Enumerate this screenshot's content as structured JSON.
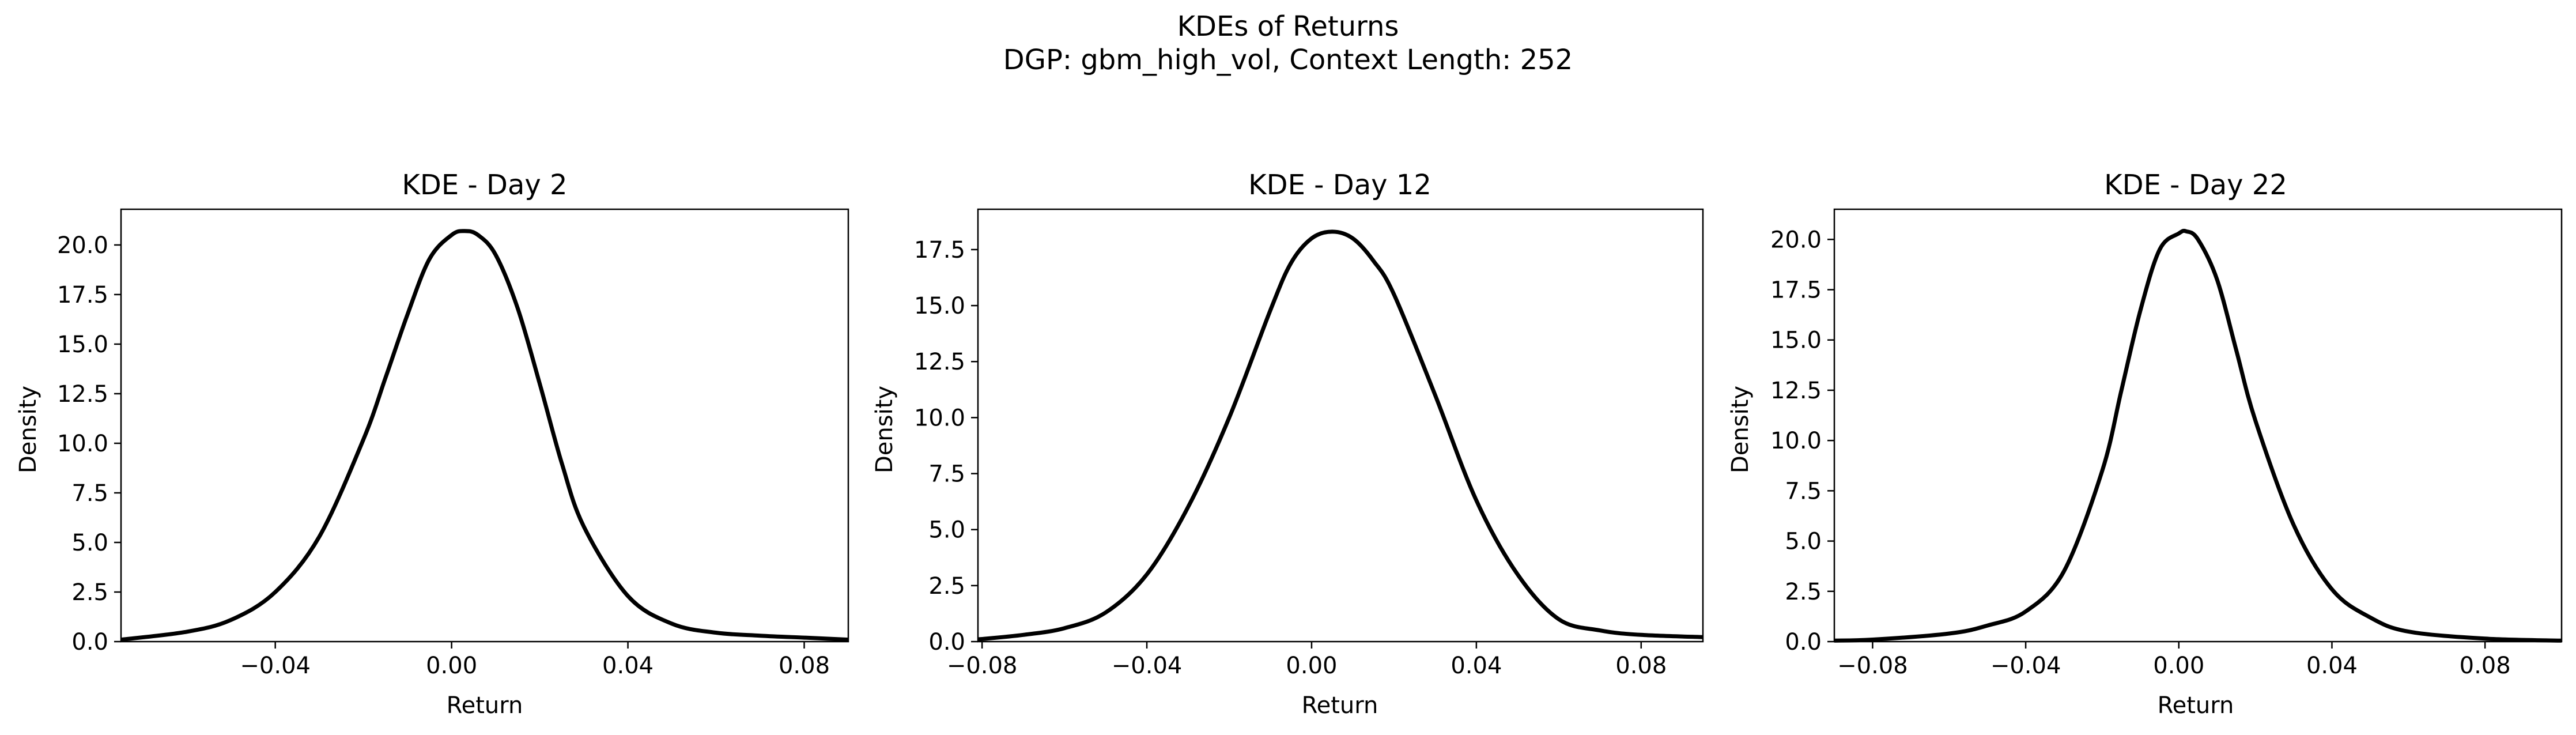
{
  "suptitle": {
    "line1": "KDEs of Returns",
    "line2": "DGP: gbm_high_vol, Context Length: 252"
  },
  "colors": {
    "curve": "#000000",
    "axes": "#000000",
    "background": "#ffffff"
  },
  "chart_data": [
    {
      "type": "line",
      "title": "KDE - Day 2",
      "xlabel": "Return",
      "ylabel": "Density",
      "xlim": [
        -0.075,
        0.09
      ],
      "ylim": [
        0,
        21.8
      ],
      "xticks": [
        -0.04,
        0.0,
        0.04,
        0.08
      ],
      "xtick_labels": [
        "−0.04",
        "0.00",
        "0.04",
        "0.08"
      ],
      "yticks": [
        0.0,
        2.5,
        5.0,
        7.5,
        10.0,
        12.5,
        15.0,
        17.5,
        20.0
      ],
      "ytick_labels": [
        "0.0",
        "2.5",
        "5.0",
        "7.5",
        "10.0",
        "12.5",
        "15.0",
        "17.5",
        "20.0"
      ],
      "grid": false,
      "series": [
        {
          "x": [
            -0.075,
            -0.06,
            -0.05,
            -0.04,
            -0.03,
            -0.02,
            -0.015,
            -0.01,
            -0.005,
            0.0,
            0.003,
            0.006,
            0.01,
            0.015,
            0.02,
            0.025,
            0.03,
            0.04,
            0.05,
            0.06,
            0.07,
            0.08,
            0.09
          ],
          "values": [
            0.1,
            0.5,
            1.1,
            2.5,
            5.3,
            10.2,
            13.3,
            16.5,
            19.3,
            20.5,
            20.7,
            20.5,
            19.5,
            16.8,
            13.0,
            9.0,
            5.8,
            2.3,
            0.9,
            0.45,
            0.3,
            0.2,
            0.1
          ]
        }
      ]
    },
    {
      "type": "line",
      "title": "KDE - Day 12",
      "xlabel": "Return",
      "ylabel": "Density",
      "xlim": [
        -0.081,
        0.095
      ],
      "ylim": [
        0,
        19.3
      ],
      "xticks": [
        -0.08,
        -0.04,
        0.0,
        0.04,
        0.08
      ],
      "xtick_labels": [
        "−0.08",
        "−0.04",
        "0.00",
        "0.04",
        "0.08"
      ],
      "yticks": [
        0.0,
        2.5,
        5.0,
        7.5,
        10.0,
        12.5,
        15.0,
        17.5
      ],
      "ytick_labels": [
        "0.0",
        "2.5",
        "5.0",
        "7.5",
        "10.0",
        "12.5",
        "15.0",
        "17.5"
      ],
      "grid": false,
      "series": [
        {
          "x": [
            -0.081,
            -0.07,
            -0.06,
            -0.05,
            -0.04,
            -0.03,
            -0.02,
            -0.01,
            -0.005,
            0.0,
            0.005,
            0.01,
            0.015,
            0.02,
            0.03,
            0.04,
            0.05,
            0.06,
            0.07,
            0.08,
            0.095
          ],
          "values": [
            0.1,
            0.3,
            0.6,
            1.3,
            3.0,
            6.0,
            10.0,
            14.8,
            16.9,
            18.0,
            18.3,
            18.0,
            17.0,
            15.5,
            11.0,
            6.3,
            3.0,
            1.0,
            0.5,
            0.3,
            0.2
          ]
        }
      ]
    },
    {
      "type": "line",
      "title": "KDE - Day 22",
      "xlabel": "Return",
      "ylabel": "Density",
      "xlim": [
        -0.09,
        0.1
      ],
      "ylim": [
        0,
        21.5
      ],
      "xticks": [
        -0.08,
        -0.04,
        0.0,
        0.04,
        0.08
      ],
      "xtick_labels": [
        "−0.08",
        "−0.04",
        "0.00",
        "0.04",
        "0.08"
      ],
      "yticks": [
        0.0,
        2.5,
        5.0,
        7.5,
        10.0,
        12.5,
        15.0,
        17.5,
        20.0
      ],
      "ytick_labels": [
        "0.0",
        "2.5",
        "5.0",
        "7.5",
        "10.0",
        "12.5",
        "15.0",
        "17.5",
        "20.0"
      ],
      "grid": false,
      "series": [
        {
          "x": [
            -0.09,
            -0.08,
            -0.06,
            -0.05,
            -0.04,
            -0.03,
            -0.02,
            -0.015,
            -0.01,
            -0.005,
            0.0,
            0.002,
            0.005,
            0.01,
            0.015,
            0.02,
            0.03,
            0.04,
            0.05,
            0.06,
            0.08,
            0.1
          ],
          "values": [
            0.05,
            0.1,
            0.4,
            0.8,
            1.5,
            3.5,
            8.5,
            12.5,
            16.5,
            19.5,
            20.3,
            20.4,
            20.0,
            18.0,
            14.5,
            11.0,
            5.8,
            2.6,
            1.2,
            0.5,
            0.15,
            0.05
          ]
        }
      ]
    }
  ]
}
